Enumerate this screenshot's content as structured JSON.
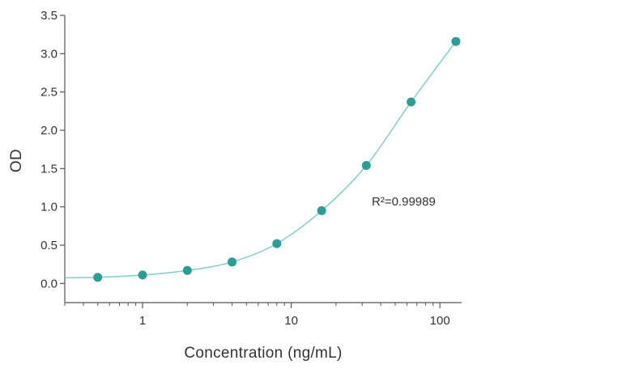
{
  "chart_data": {
    "type": "scatter",
    "title": "",
    "xlabel": "Concentration (ng/mL)",
    "ylabel": "OD",
    "x_scale": "log",
    "xlim": [
      0.3,
      140
    ],
    "ylim": [
      -0.25,
      3.5
    ],
    "x_ticks": [
      1,
      10,
      100
    ],
    "x_tick_labels": [
      "1",
      "10",
      "100"
    ],
    "y_ticks": [
      0.0,
      0.5,
      1.0,
      1.5,
      2.0,
      2.5,
      3.0,
      3.5
    ],
    "y_tick_labels": [
      "0.0",
      "0.5",
      "1.0",
      "1.5",
      "2.0",
      "2.5",
      "3.0",
      "3.5"
    ],
    "grid": false,
    "legend": false,
    "annotation": "R²=0.99989",
    "series": [
      {
        "x": [
          0.5,
          1,
          2,
          4,
          8,
          16,
          32,
          64,
          128
        ],
        "y": [
          0.08,
          0.11,
          0.17,
          0.28,
          0.52,
          0.95,
          1.54,
          2.37,
          3.16
        ]
      }
    ],
    "colors": {
      "points": "#2a9d96",
      "curve": "#7ecfc8",
      "axis": "#555555",
      "text": "#333333"
    }
  }
}
